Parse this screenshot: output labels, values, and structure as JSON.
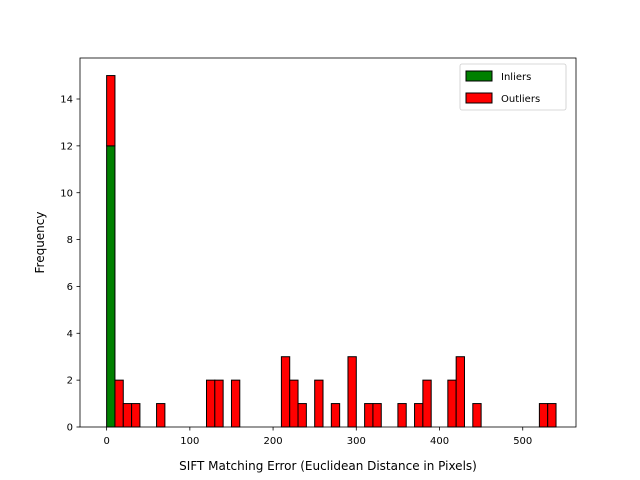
{
  "chart_data": {
    "type": "bar",
    "stacked": true,
    "title": "",
    "xlabel": "SIFT Matching Error (Euclidean Distance in Pixels)",
    "ylabel": "Frequency",
    "xlim": [
      -32,
      564
    ],
    "ylim": [
      0,
      15.75
    ],
    "xticks": [
      0,
      100,
      200,
      300,
      400,
      500
    ],
    "yticks": [
      0,
      2,
      4,
      6,
      8,
      10,
      12,
      14
    ],
    "bin_width": 10,
    "grid": false,
    "legend_position": "top-right",
    "series": [
      {
        "name": "Inliers",
        "color": "#008000",
        "bins": [
          {
            "x": 0,
            "value": 12
          }
        ]
      },
      {
        "name": "Outliers",
        "color": "#ff0000",
        "bins": [
          {
            "x": 0,
            "value": 3
          },
          {
            "x": 10,
            "value": 2
          },
          {
            "x": 20,
            "value": 1
          },
          {
            "x": 30,
            "value": 1
          },
          {
            "x": 60,
            "value": 1
          },
          {
            "x": 120,
            "value": 2
          },
          {
            "x": 130,
            "value": 2
          },
          {
            "x": 150,
            "value": 2
          },
          {
            "x": 210,
            "value": 3
          },
          {
            "x": 220,
            "value": 2
          },
          {
            "x": 230,
            "value": 1
          },
          {
            "x": 250,
            "value": 2
          },
          {
            "x": 270,
            "value": 1
          },
          {
            "x": 290,
            "value": 3
          },
          {
            "x": 310,
            "value": 1
          },
          {
            "x": 320,
            "value": 1
          },
          {
            "x": 350,
            "value": 1
          },
          {
            "x": 370,
            "value": 1
          },
          {
            "x": 380,
            "value": 2
          },
          {
            "x": 410,
            "value": 2
          },
          {
            "x": 420,
            "value": 3
          },
          {
            "x": 440,
            "value": 1
          },
          {
            "x": 520,
            "value": 1
          },
          {
            "x": 530,
            "value": 1
          }
        ]
      }
    ]
  }
}
